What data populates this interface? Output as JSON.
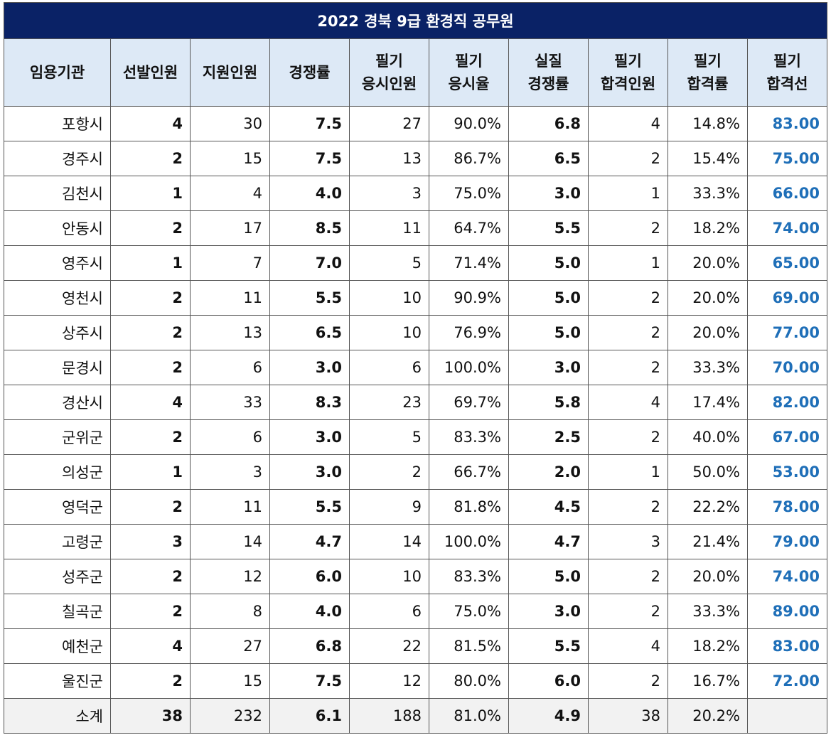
{
  "title": "2022 경북 9급 환경직  공무원",
  "headers": [
    "임용기관",
    "선발인원",
    "지원인원",
    "경쟁률",
    "필기\n응시인원",
    "필기\n응시율",
    "실질\n경쟁률",
    "필기\n합격인원",
    "필기\n합격률",
    "필기\n합격선"
  ],
  "rows": [
    [
      "포항시",
      "4",
      "30",
      "7.5",
      "27",
      "90.0%",
      "6.8",
      "4",
      "14.8%",
      "83.00"
    ],
    [
      "경주시",
      "2",
      "15",
      "7.5",
      "13",
      "86.7%",
      "6.5",
      "2",
      "15.4%",
      "75.00"
    ],
    [
      "김천시",
      "1",
      "4",
      "4.0",
      "3",
      "75.0%",
      "3.0",
      "1",
      "33.3%",
      "66.00"
    ],
    [
      "안동시",
      "2",
      "17",
      "8.5",
      "11",
      "64.7%",
      "5.5",
      "2",
      "18.2%",
      "74.00"
    ],
    [
      "영주시",
      "1",
      "7",
      "7.0",
      "5",
      "71.4%",
      "5.0",
      "1",
      "20.0%",
      "65.00"
    ],
    [
      "영천시",
      "2",
      "11",
      "5.5",
      "10",
      "90.9%",
      "5.0",
      "2",
      "20.0%",
      "69.00"
    ],
    [
      "상주시",
      "2",
      "13",
      "6.5",
      "10",
      "76.9%",
      "5.0",
      "2",
      "20.0%",
      "77.00"
    ],
    [
      "문경시",
      "2",
      "6",
      "3.0",
      "6",
      "100.0%",
      "3.0",
      "2",
      "33.3%",
      "70.00"
    ],
    [
      "경산시",
      "4",
      "33",
      "8.3",
      "23",
      "69.7%",
      "5.8",
      "4",
      "17.4%",
      "82.00"
    ],
    [
      "군위군",
      "2",
      "6",
      "3.0",
      "5",
      "83.3%",
      "2.5",
      "2",
      "40.0%",
      "67.00"
    ],
    [
      "의성군",
      "1",
      "3",
      "3.0",
      "2",
      "66.7%",
      "2.0",
      "1",
      "50.0%",
      "53.00"
    ],
    [
      "영덕군",
      "2",
      "11",
      "5.5",
      "9",
      "81.8%",
      "4.5",
      "2",
      "22.2%",
      "78.00"
    ],
    [
      "고령군",
      "3",
      "14",
      "4.7",
      "14",
      "100.0%",
      "4.7",
      "3",
      "21.4%",
      "79.00"
    ],
    [
      "성주군",
      "2",
      "12",
      "6.0",
      "10",
      "83.3%",
      "5.0",
      "2",
      "20.0%",
      "74.00"
    ],
    [
      "칠곡군",
      "2",
      "8",
      "4.0",
      "6",
      "75.0%",
      "3.0",
      "2",
      "33.3%",
      "89.00"
    ],
    [
      "예천군",
      "4",
      "27",
      "6.8",
      "22",
      "81.5%",
      "5.5",
      "4",
      "18.2%",
      "83.00"
    ],
    [
      "울진군",
      "2",
      "15",
      "7.5",
      "12",
      "80.0%",
      "6.0",
      "2",
      "16.7%",
      "72.00"
    ]
  ],
  "total": [
    "소계",
    "38",
    "232",
    "6.1",
    "188",
    "81.0%",
    "4.9",
    "38",
    "20.2%",
    ""
  ],
  "colors": {
    "title_bg": "#0a2266",
    "header_bg": "#dde9f6",
    "cutoff_text": "#1f6fb8",
    "total_bg": "#f2f2f2"
  }
}
